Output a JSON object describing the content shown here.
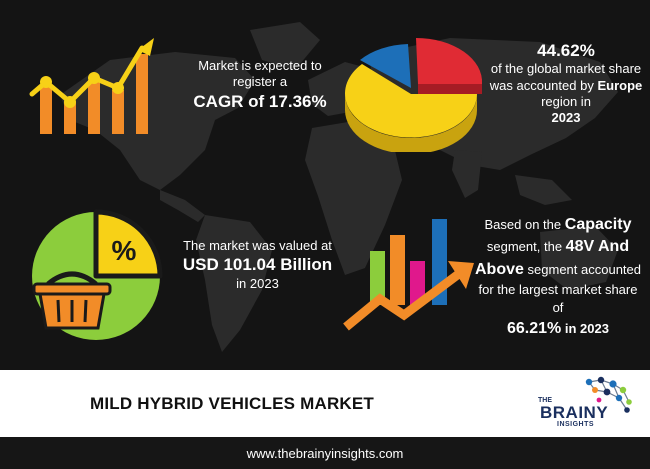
{
  "stats": {
    "cagr": {
      "prefix": "Market is expected to register a",
      "value": "CAGR of 17.36%"
    },
    "europe": {
      "value": "44.62%",
      "middle": "of the global market share was accounted by",
      "region": "Europe",
      "suffix": "region in",
      "year": "2023"
    },
    "market_size": {
      "prefix": "The market was valued at",
      "value": "USD 101.04 Billion",
      "suffix": "in 2023"
    },
    "capacity": {
      "prefix": "Based on the",
      "segment_name": "Capacity",
      "middle": "segment, the",
      "segment_value": "48V And Above",
      "suffix": "segment accounted for the largest market share of",
      "share": "66.21%",
      "year": "in 2023"
    }
  },
  "icons": {
    "percent_symbol": "%"
  },
  "title": "MILD HYBRID VEHICLES MARKET",
  "brand": {
    "the": "THE",
    "brainy": "BRAINY",
    "insights": "INSIGHTS"
  },
  "footer": {
    "url": "www.thebrainyinsights.com"
  },
  "colors": {
    "background": "#141414",
    "map": "#2c2c2c",
    "orange": "#f28c28",
    "yellow": "#f7d117",
    "red": "#e02b34",
    "blue": "#1d6fb8",
    "green": "#8ccd3c",
    "pink": "#e0188c",
    "brand_navy": "#1a2f5e"
  }
}
